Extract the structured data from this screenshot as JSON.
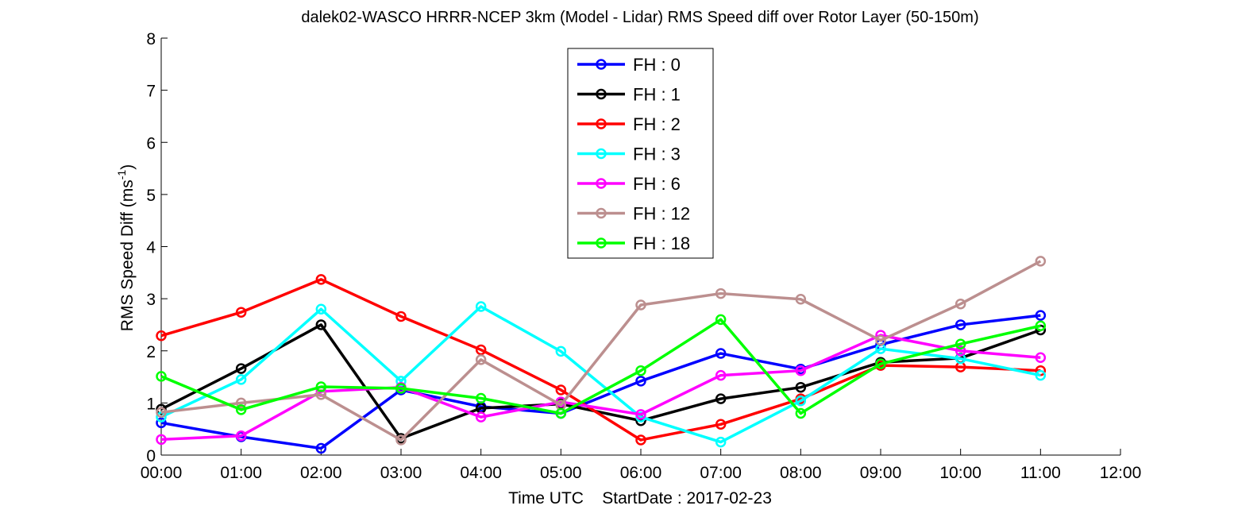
{
  "chart_data": {
    "type": "line",
    "title": "dalek02-WASCO HRRR-NCEP 3km (Model - Lidar) RMS Speed diff over Rotor Layer (50-150m)",
    "xlabel": "Time UTC    StartDate : 2017-02-23",
    "ylabel": "RMS Speed Diff (ms",
    "ylabel_sup": "-1",
    "ylabel_end": ")",
    "xlim": [
      0,
      12
    ],
    "ylim": [
      0,
      8
    ],
    "x_ticks": [
      0,
      1,
      2,
      3,
      4,
      5,
      6,
      7,
      8,
      9,
      10,
      11,
      12
    ],
    "x_tick_labels": [
      "00:00",
      "01:00",
      "02:00",
      "03:00",
      "04:00",
      "05:00",
      "06:00",
      "07:00",
      "08:00",
      "09:00",
      "10:00",
      "11:00",
      "12:00"
    ],
    "y_ticks": [
      0,
      1,
      2,
      3,
      4,
      5,
      6,
      7,
      8
    ],
    "y_tick_labels": [
      "0",
      "1",
      "2",
      "3",
      "4",
      "5",
      "6",
      "7",
      "8"
    ],
    "grid": false,
    "legend_position": "top-center",
    "x": [
      0,
      1,
      2,
      3,
      4,
      5,
      6,
      7,
      8,
      9,
      10,
      11
    ],
    "series": [
      {
        "name": "FH : 0",
        "color": "#0000ff",
        "values": [
          0.62,
          0.35,
          0.13,
          1.25,
          0.93,
          0.8,
          1.42,
          1.95,
          1.65,
          2.12,
          2.5,
          2.68
        ]
      },
      {
        "name": "FH : 1",
        "color": "#000000",
        "values": [
          0.88,
          1.66,
          2.5,
          0.32,
          0.9,
          0.98,
          0.66,
          1.08,
          1.3,
          1.78,
          1.86,
          2.4
        ]
      },
      {
        "name": "FH : 2",
        "color": "#ff0000",
        "values": [
          2.29,
          2.74,
          3.37,
          2.66,
          2.02,
          1.25,
          0.29,
          0.59,
          1.08,
          1.72,
          1.69,
          1.62
        ]
      },
      {
        "name": "FH : 3",
        "color": "#00ffff",
        "values": [
          0.73,
          1.45,
          2.8,
          1.42,
          2.85,
          1.99,
          0.73,
          0.25,
          1.04,
          2.04,
          1.85,
          1.53
        ]
      },
      {
        "name": "FH : 6",
        "color": "#ff00ff",
        "values": [
          0.3,
          0.37,
          1.22,
          1.3,
          0.73,
          1.02,
          0.78,
          1.53,
          1.62,
          2.3,
          2.0,
          1.87
        ]
      },
      {
        "name": "FH : 12",
        "color": "#bc8f8f",
        "values": [
          0.82,
          1.0,
          1.16,
          0.29,
          1.83,
          0.96,
          2.88,
          3.1,
          2.99,
          2.2,
          2.9,
          3.72
        ]
      },
      {
        "name": "FH : 18",
        "color": "#00ff00",
        "values": [
          1.51,
          0.87,
          1.31,
          1.28,
          1.09,
          0.8,
          1.62,
          2.6,
          0.8,
          1.75,
          2.13,
          2.48
        ]
      }
    ]
  }
}
